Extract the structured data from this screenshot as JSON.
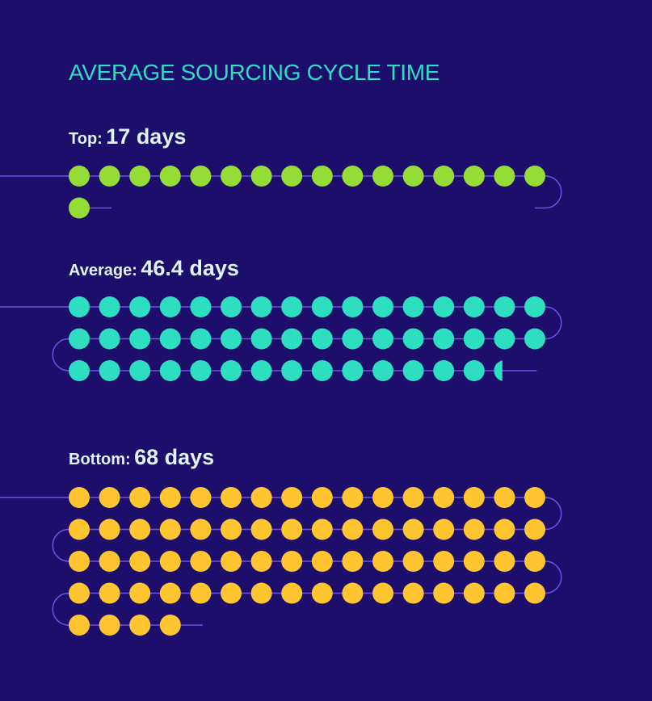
{
  "title": "AVERAGE SOURCING CYCLE TIME",
  "colors": {
    "background": "#1e0e6b",
    "title": "#2fdcc4",
    "label": "#dff3f6",
    "connector": "#6a52e8"
  },
  "chart_data": {
    "type": "dot-plot",
    "unit": "days",
    "title": "AVERAGE SOURCING CYCLE TIME",
    "series": [
      {
        "label": "Top:",
        "display": "17 days",
        "value": 17,
        "color": "#95dc36"
      },
      {
        "label": "Average:",
        "display": "46.4 days",
        "value": 46.4,
        "color": "#2ddfc0"
      },
      {
        "label": "Bottom:",
        "display": "68 days",
        "value": 68,
        "color": "#ffc631"
      }
    ]
  }
}
